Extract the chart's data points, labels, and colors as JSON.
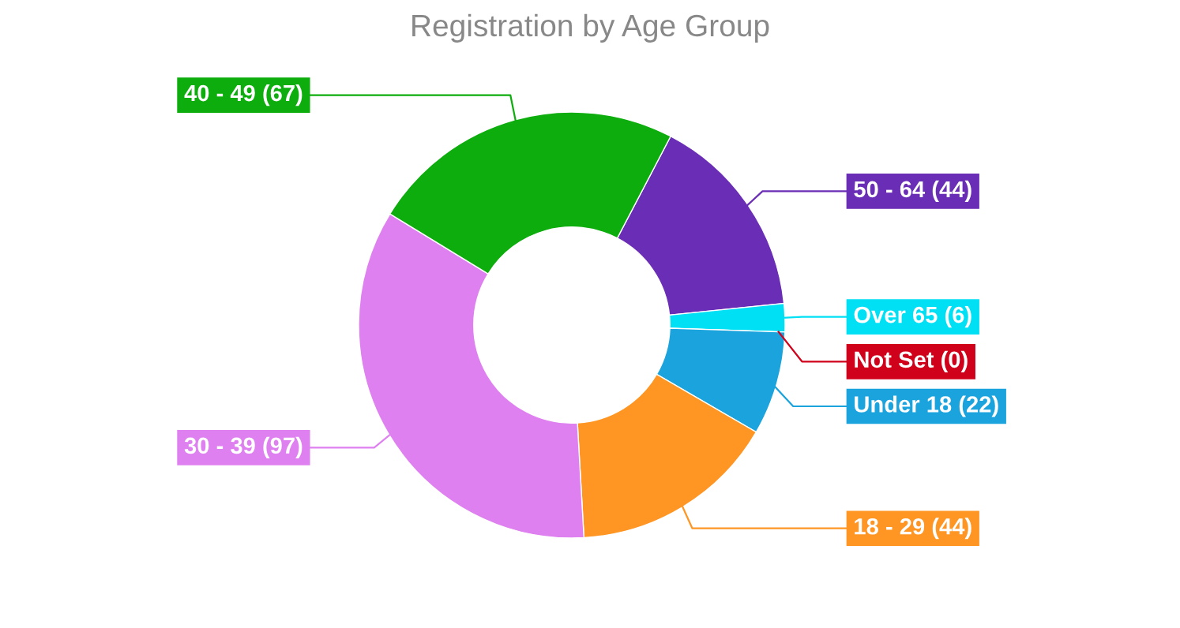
{
  "chart_data": {
    "type": "donut",
    "title": "Registration by Age Group",
    "categories": [
      "50 - 64 (44)",
      "Over 65 (6)",
      "Not Set (0)",
      "Under 18 (22)",
      "18 - 29 (44)",
      "30 - 39 (97)",
      "40 - 49 (67)"
    ],
    "values": [
      44,
      6,
      0,
      22,
      44,
      97,
      67
    ],
    "colors": [
      "#6a2db5",
      "#00e0f5",
      "#d0021b",
      "#1aa3dc",
      "#ff9624",
      "#df80f0",
      "#0ead0e"
    ]
  }
}
